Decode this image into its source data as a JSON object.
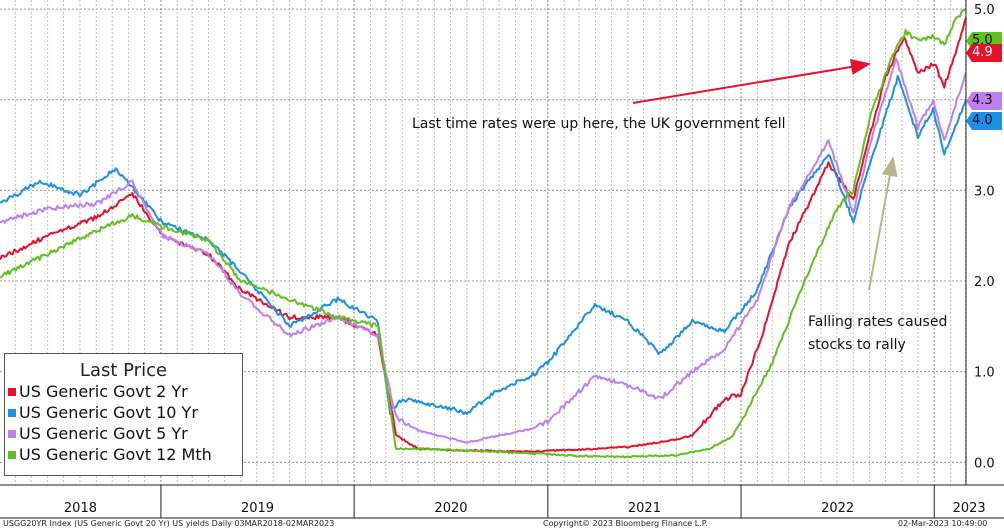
{
  "chart_data": {
    "type": "line",
    "x_type": "date",
    "x_range": [
      "2018-03-03",
      "2023-03-02"
    ],
    "ylim": [
      -0.25,
      5.1
    ],
    "yticks": [
      0.0,
      1.0,
      2.0,
      3.0,
      4.0,
      5.0
    ],
    "ytick_labels": [
      "0.0",
      "1.0",
      "2.0",
      "3.0",
      "4.0",
      "5.0"
    ],
    "xtick_labels": [
      "2018",
      "2019",
      "2020",
      "2021",
      "2022",
      "2023"
    ],
    "grid": true,
    "legend_title": "Last Price",
    "legend_position": "bottom-left",
    "series": [
      {
        "name": "US Generic Govt 2 Yr",
        "color": "#e8112d",
        "last_label": "4.9",
        "points": [
          [
            "2018-03-03",
            2.25
          ],
          [
            "2018-06-01",
            2.5
          ],
          [
            "2018-09-01",
            2.7
          ],
          [
            "2018-11-08",
            2.97
          ],
          [
            "2019-01-03",
            2.5
          ],
          [
            "2019-04-01",
            2.3
          ],
          [
            "2019-06-01",
            1.9
          ],
          [
            "2019-09-01",
            1.6
          ],
          [
            "2019-12-01",
            1.6
          ],
          [
            "2020-02-15",
            1.4
          ],
          [
            "2020-03-20",
            0.3
          ],
          [
            "2020-05-01",
            0.15
          ],
          [
            "2020-08-01",
            0.13
          ],
          [
            "2020-12-01",
            0.12
          ],
          [
            "2021-03-01",
            0.14
          ],
          [
            "2021-06-01",
            0.17
          ],
          [
            "2021-09-01",
            0.25
          ],
          [
            "2021-10-01",
            0.3
          ],
          [
            "2021-12-01",
            0.7
          ],
          [
            "2022-01-01",
            0.75
          ],
          [
            "2022-02-15",
            1.5
          ],
          [
            "2022-04-01",
            2.4
          ],
          [
            "2022-06-15",
            3.3
          ],
          [
            "2022-08-01",
            2.9
          ],
          [
            "2022-09-01",
            3.6
          ],
          [
            "2022-10-01",
            4.25
          ],
          [
            "2022-11-05",
            4.7
          ],
          [
            "2022-12-01",
            4.3
          ],
          [
            "2023-01-01",
            4.4
          ],
          [
            "2023-01-20",
            4.15
          ],
          [
            "2023-02-10",
            4.5
          ],
          [
            "2023-03-02",
            4.9
          ]
        ]
      },
      {
        "name": "US Generic Govt 10 Yr",
        "color": "#1e8fe6",
        "last_label": "4.0",
        "points": [
          [
            "2018-03-03",
            2.85
          ],
          [
            "2018-05-17",
            3.1
          ],
          [
            "2018-08-01",
            2.95
          ],
          [
            "2018-10-08",
            3.24
          ],
          [
            "2019-01-03",
            2.65
          ],
          [
            "2019-04-01",
            2.45
          ],
          [
            "2019-06-01",
            2.1
          ],
          [
            "2019-09-01",
            1.5
          ],
          [
            "2019-12-01",
            1.8
          ],
          [
            "2020-02-15",
            1.55
          ],
          [
            "2020-03-09",
            0.55
          ],
          [
            "2020-04-01",
            0.7
          ],
          [
            "2020-08-01",
            0.55
          ],
          [
            "2020-10-01",
            0.8
          ],
          [
            "2020-12-01",
            0.95
          ],
          [
            "2021-01-01",
            1.1
          ],
          [
            "2021-03-31",
            1.74
          ],
          [
            "2021-06-01",
            1.55
          ],
          [
            "2021-08-01",
            1.2
          ],
          [
            "2021-10-01",
            1.55
          ],
          [
            "2021-12-01",
            1.45
          ],
          [
            "2022-02-01",
            1.9
          ],
          [
            "2022-04-01",
            2.8
          ],
          [
            "2022-06-15",
            3.4
          ],
          [
            "2022-08-01",
            2.65
          ],
          [
            "2022-09-01",
            3.3
          ],
          [
            "2022-10-24",
            4.24
          ],
          [
            "2022-12-01",
            3.6
          ],
          [
            "2022-12-30",
            3.9
          ],
          [
            "2023-01-20",
            3.4
          ],
          [
            "2023-02-10",
            3.7
          ],
          [
            "2023-03-02",
            4.0
          ]
        ]
      },
      {
        "name": "US Generic Govt 5 Yr",
        "color": "#c07ff0",
        "last_label": "4.3",
        "points": [
          [
            "2018-03-03",
            2.65
          ],
          [
            "2018-06-01",
            2.8
          ],
          [
            "2018-09-01",
            2.85
          ],
          [
            "2018-11-08",
            3.09
          ],
          [
            "2019-01-03",
            2.5
          ],
          [
            "2019-04-01",
            2.3
          ],
          [
            "2019-06-01",
            1.85
          ],
          [
            "2019-09-01",
            1.4
          ],
          [
            "2019-12-01",
            1.6
          ],
          [
            "2020-02-15",
            1.4
          ],
          [
            "2020-03-20",
            0.5
          ],
          [
            "2020-05-01",
            0.35
          ],
          [
            "2020-08-01",
            0.22
          ],
          [
            "2020-12-01",
            0.37
          ],
          [
            "2021-01-01",
            0.45
          ],
          [
            "2021-03-31",
            0.95
          ],
          [
            "2021-06-01",
            0.85
          ],
          [
            "2021-08-01",
            0.7
          ],
          [
            "2021-10-01",
            1.0
          ],
          [
            "2021-12-01",
            1.25
          ],
          [
            "2022-02-01",
            1.8
          ],
          [
            "2022-04-01",
            2.8
          ],
          [
            "2022-06-15",
            3.55
          ],
          [
            "2022-08-01",
            2.75
          ],
          [
            "2022-09-01",
            3.5
          ],
          [
            "2022-10-21",
            4.45
          ],
          [
            "2022-12-01",
            3.7
          ],
          [
            "2022-12-30",
            4.0
          ],
          [
            "2023-01-20",
            3.55
          ],
          [
            "2023-02-10",
            3.95
          ],
          [
            "2023-03-02",
            4.3
          ]
        ]
      },
      {
        "name": "US Generic Govt 12 Mth",
        "color": "#62c01e",
        "last_label": "5.0",
        "points": [
          [
            "2018-03-03",
            2.05
          ],
          [
            "2018-06-01",
            2.3
          ],
          [
            "2018-09-01",
            2.55
          ],
          [
            "2018-11-08",
            2.72
          ],
          [
            "2019-01-03",
            2.6
          ],
          [
            "2019-04-01",
            2.45
          ],
          [
            "2019-06-01",
            2.0
          ],
          [
            "2019-09-01",
            1.8
          ],
          [
            "2019-12-01",
            1.6
          ],
          [
            "2020-02-15",
            1.5
          ],
          [
            "2020-03-20",
            0.15
          ],
          [
            "2020-05-01",
            0.15
          ],
          [
            "2020-08-01",
            0.13
          ],
          [
            "2020-12-01",
            0.1
          ],
          [
            "2021-03-01",
            0.07
          ],
          [
            "2021-06-01",
            0.06
          ],
          [
            "2021-09-01",
            0.08
          ],
          [
            "2021-11-01",
            0.15
          ],
          [
            "2021-12-15",
            0.28
          ],
          [
            "2022-01-15",
            0.6
          ],
          [
            "2022-03-01",
            1.1
          ],
          [
            "2022-05-01",
            2.0
          ],
          [
            "2022-07-01",
            2.8
          ],
          [
            "2022-08-01",
            3.0
          ],
          [
            "2022-09-01",
            3.8
          ],
          [
            "2022-10-15",
            4.5
          ],
          [
            "2022-11-08",
            4.75
          ],
          [
            "2022-12-01",
            4.65
          ],
          [
            "2023-01-01",
            4.7
          ],
          [
            "2023-01-20",
            4.6
          ],
          [
            "2023-02-10",
            4.9
          ],
          [
            "2023-03-02",
            5.0
          ]
        ]
      }
    ],
    "annotations": [
      {
        "text": "Last time rates were up here, the UK government fell",
        "arrow_color": "#e8112d"
      },
      {
        "text": "Falling rates caused stocks to rally",
        "arrow_color": "#b5b78a"
      }
    ]
  },
  "footer": {
    "left": "USGG20YR Index (US Generic Govt 20 Yr) US yields  Daily 03MAR2018-02MAR2023",
    "center": "Copyright© 2023 Bloomberg Finance L.P.",
    "right": "02-Mar-2023 10:49:00"
  }
}
